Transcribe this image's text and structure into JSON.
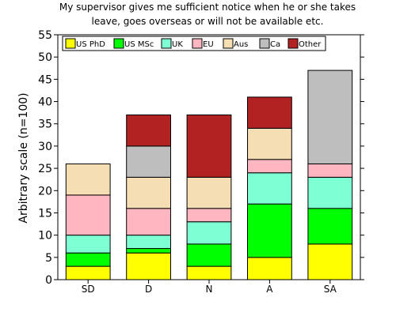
{
  "chart_data": {
    "type": "bar",
    "stacked": true,
    "title": [
      "My supervisor gives me sufficient notice when he or she takes",
      "leave, goes overseas or will not be available etc."
    ],
    "xlabel": "",
    "ylabel": "Arbitrary scale (n=100)",
    "ylim": [
      0,
      55
    ],
    "yticks": [
      0,
      5,
      10,
      15,
      20,
      25,
      30,
      35,
      40,
      45,
      50,
      55
    ],
    "categories": [
      "SD",
      "D",
      "N",
      "A",
      "SA"
    ],
    "legend_position": "top",
    "series": [
      {
        "name": "US PhD",
        "color": "#ffff00",
        "values": [
          3,
          6,
          3,
          5,
          8
        ]
      },
      {
        "name": "US MSc",
        "color": "#00ff00",
        "values": [
          3,
          1,
          5,
          12,
          8
        ]
      },
      {
        "name": "UK",
        "color": "#7fffd4",
        "values": [
          4,
          3,
          5,
          7,
          7
        ]
      },
      {
        "name": "EU",
        "color": "#ffb6c1",
        "values": [
          9,
          6,
          3,
          3,
          3
        ]
      },
      {
        "name": "Aus",
        "color": "#f5deb3",
        "values": [
          7,
          7,
          7,
          7,
          0
        ]
      },
      {
        "name": "Ca",
        "color": "#bebebe",
        "values": [
          0,
          7,
          0,
          0,
          21
        ]
      },
      {
        "name": "Other",
        "color": "#b22222",
        "values": [
          0,
          7,
          14,
          7,
          0
        ]
      }
    ]
  }
}
